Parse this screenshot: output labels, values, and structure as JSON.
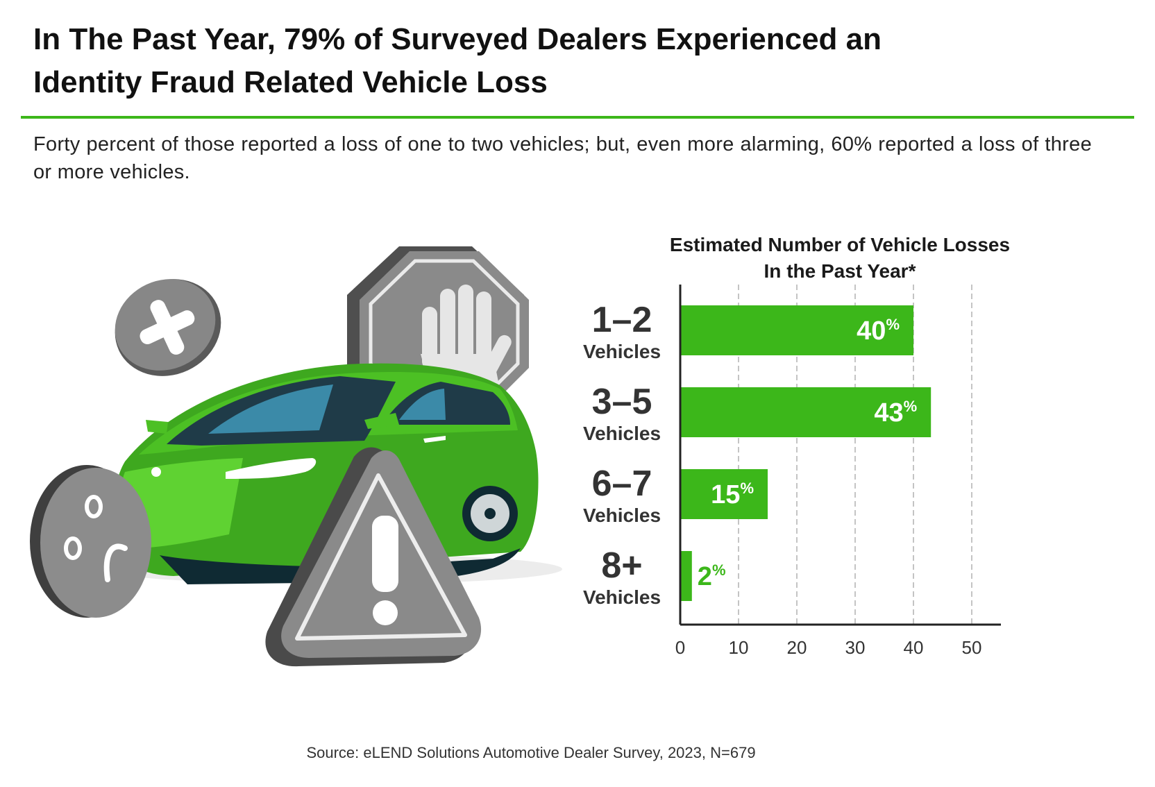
{
  "header": {
    "title_line1": "In The Past Year, 79% of Surveyed Dealers Experienced an",
    "title_line2": "Identity Fraud Related Vehicle Loss",
    "subtitle": "Forty percent of those reported a loss of one to two vehicles; but, even more alarming, 60% reported a loss of three or more vehicles."
  },
  "colors": {
    "accent": "#3cb71a",
    "bar": "#3cb71a",
    "axis": "#222222",
    "grid": "#b5b5b5"
  },
  "icons": [
    "x-mark-icon",
    "stop-hand-icon",
    "car-icon",
    "sad-face-icon",
    "warning-triangle-icon"
  ],
  "chart_data": {
    "type": "bar",
    "orientation": "horizontal",
    "title_line1": "Estimated Number of Vehicle Losses",
    "title_line2": "In the Past Year*",
    "categories": [
      {
        "number": "1–2",
        "unit": "Vehicles"
      },
      {
        "number": "3–5",
        "unit": "Vehicles"
      },
      {
        "number": "6–7",
        "unit": "Vehicles"
      },
      {
        "number": "8+",
        "unit": "Vehicles"
      }
    ],
    "values": [
      40,
      43,
      15,
      2
    ],
    "value_labels": [
      "40",
      "43",
      "15",
      "2"
    ],
    "value_suffix": "%",
    "xlim": [
      0,
      55
    ],
    "xticks": [
      0,
      10,
      20,
      30,
      40,
      50
    ],
    "grid": true
  },
  "footer": {
    "source": "Source: eLEND Solutions Automotive Dealer Survey, 2023,  N=679"
  }
}
